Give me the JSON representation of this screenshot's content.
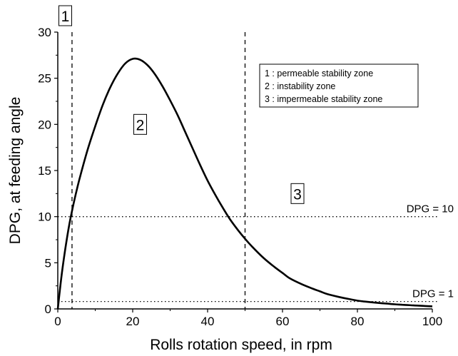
{
  "chart_data": {
    "type": "line",
    "xlabel": "Rolls rotation speed, in rpm",
    "ylabel": "DPG, at feeding angle",
    "xlim": [
      0,
      100
    ],
    "ylim": [
      0,
      30
    ],
    "xticks": [
      "0",
      "20",
      "40",
      "60",
      "80",
      "100"
    ],
    "yticks": [
      "0",
      "5",
      "10",
      "15",
      "20",
      "25",
      "30"
    ],
    "grid": false,
    "series": [
      {
        "x": [
          0,
          1,
          2,
          3,
          4,
          5,
          6,
          8,
          10,
          12,
          14,
          16,
          18,
          20,
          22,
          24,
          26,
          28,
          30,
          32,
          34,
          36,
          38,
          40,
          42,
          44,
          46,
          48,
          50,
          52,
          55,
          58,
          60,
          62,
          65,
          68,
          70,
          72,
          75,
          78,
          80,
          82,
          85,
          88,
          90,
          92,
          95,
          98,
          100
        ],
        "y": [
          0,
          3.6,
          6.5,
          9.0,
          11.0,
          12.8,
          14.4,
          17.3,
          19.8,
          22.1,
          24.0,
          25.5,
          26.6,
          27.1,
          27.0,
          26.4,
          25.4,
          24.1,
          22.6,
          21.0,
          19.2,
          17.4,
          15.6,
          13.9,
          12.4,
          11.0,
          9.7,
          8.6,
          7.6,
          6.7,
          5.5,
          4.5,
          3.9,
          3.3,
          2.7,
          2.2,
          1.9,
          1.6,
          1.3,
          1.05,
          0.9,
          0.8,
          0.67,
          0.57,
          0.5,
          0.45,
          0.38,
          0.32,
          0.28
        ],
        "color": "#000000"
      }
    ],
    "vlines": [
      {
        "x": 3.8,
        "style": "dashed"
      },
      {
        "x": 50,
        "style": "dashed"
      }
    ],
    "hlines": [
      {
        "y": 10,
        "label": "DPG = 10",
        "style": "dotted"
      },
      {
        "y": 0.8,
        "label": "DPG = 1",
        "style": "dotted"
      }
    ],
    "zone_labels": [
      {
        "text": "1",
        "x": 2
      },
      {
        "text": "2",
        "x": 22,
        "y": 20
      },
      {
        "text": "3",
        "x": 64,
        "y": 12.5
      }
    ],
    "legend": {
      "position": "top-right",
      "entries": [
        "1 : permeable stability zone",
        "2 : instability zone",
        "3 : impermeable stability zone"
      ]
    }
  }
}
